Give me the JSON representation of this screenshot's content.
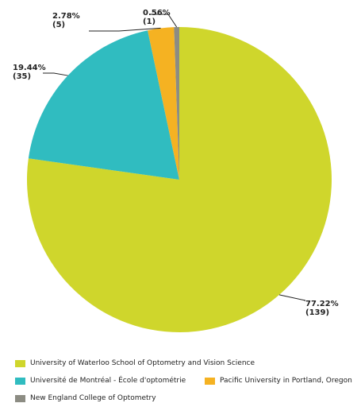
{
  "chart_data": {
    "type": "pie",
    "slices": [
      {
        "name": "University of Waterloo School of Optometry and Vision Science",
        "count": 139,
        "percent": 77.22,
        "percent_label": "77.22%",
        "count_label": "(139)",
        "color": "#cfd62c"
      },
      {
        "name": "Université de Montréal - École d'optométrie",
        "count": 35,
        "percent": 19.44,
        "percent_label": "19.44%",
        "count_label": "(35)",
        "color": "#30bcc0"
      },
      {
        "name": "Pacific University in Portland, Oregon",
        "count": 5,
        "percent": 2.78,
        "percent_label": "2.78%",
        "count_label": "(5)",
        "color": "#f5b222"
      },
      {
        "name": "New England College of Optometry",
        "count": 1,
        "percent": 0.56,
        "percent_label": "0.56%",
        "count_label": "(1)",
        "color": "#8c8c83"
      }
    ],
    "legend_position": "bottom"
  }
}
